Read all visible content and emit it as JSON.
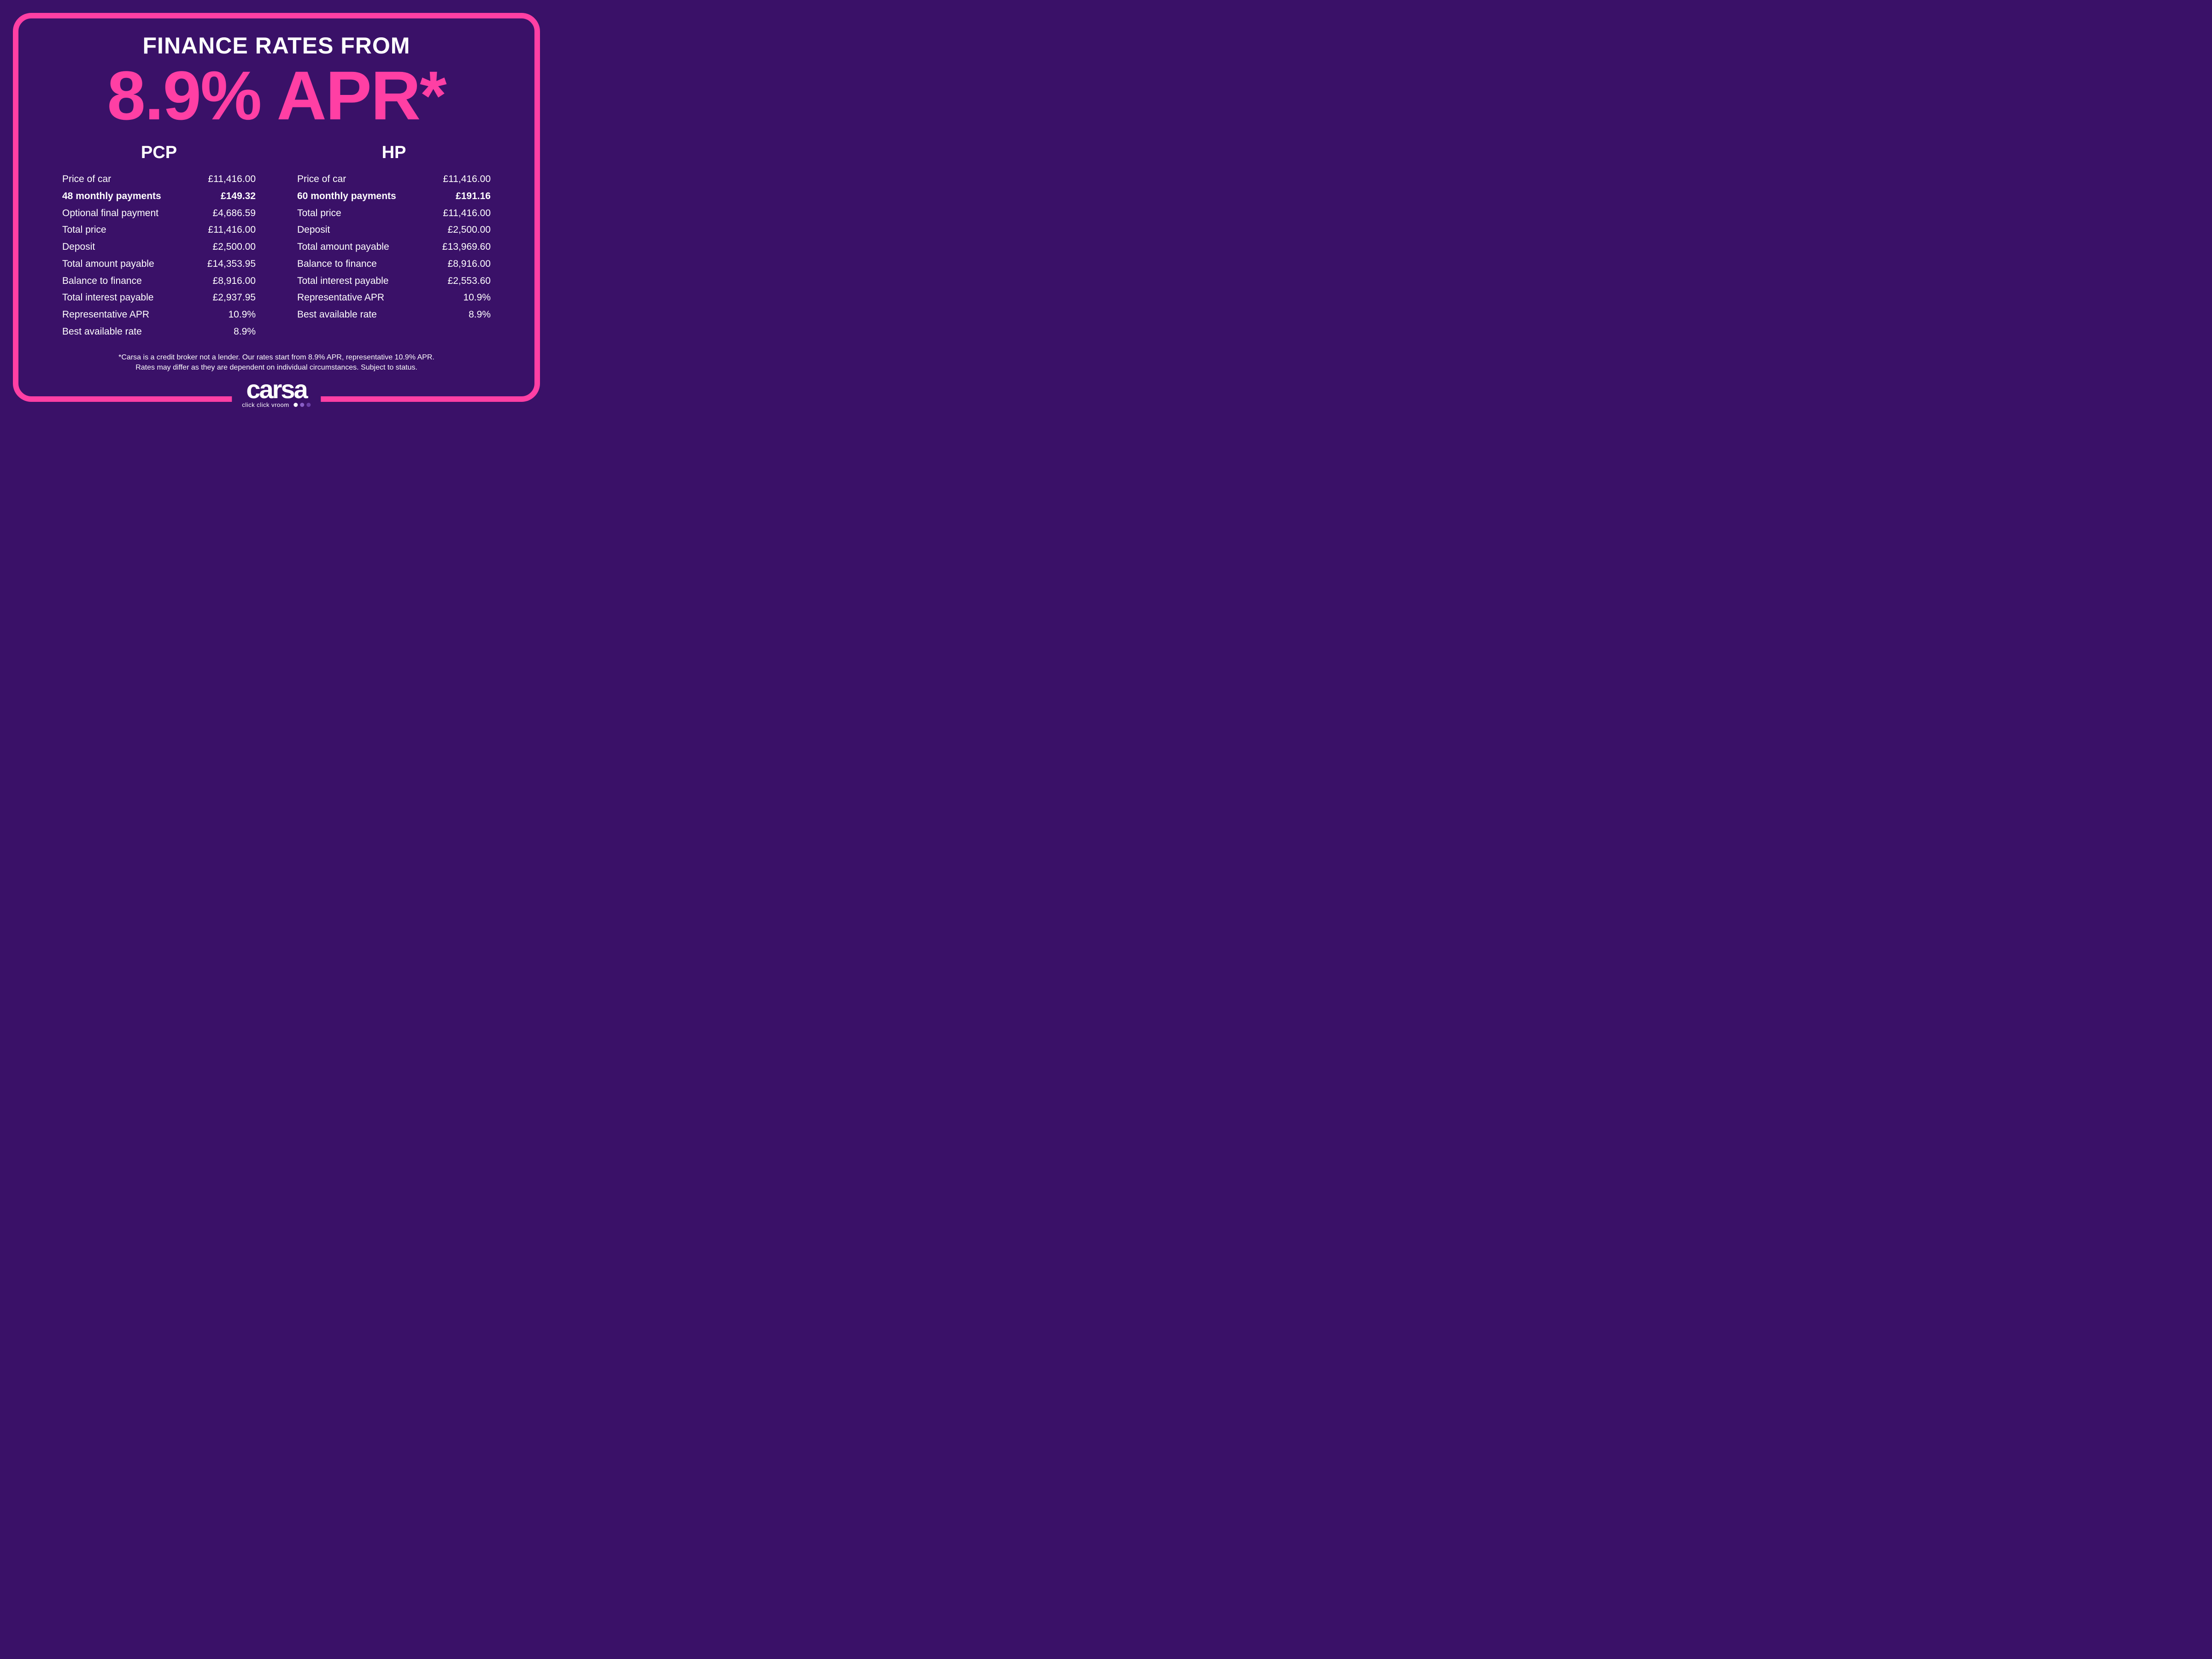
{
  "colors": {
    "background": "#3a1168",
    "accent": "#ff3fa4",
    "text": "#ffffff",
    "dot1": "#ffffff",
    "dot2": "#8a5fc7",
    "dot3": "#6b3fa8"
  },
  "header": {
    "line1": "FINANCE RATES FROM",
    "line2": "8.9% APR*"
  },
  "pcp": {
    "title": "PCP",
    "rows": [
      {
        "label": "Price of car",
        "value": "£11,416.00",
        "bold": false
      },
      {
        "label": "48 monthly payments",
        "value": "£149.32",
        "bold": true
      },
      {
        "label": "Optional final payment",
        "value": "£4,686.59",
        "bold": false
      },
      {
        "label": "Total price",
        "value": "£11,416.00",
        "bold": false
      },
      {
        "label": "Deposit",
        "value": "£2,500.00",
        "bold": false
      },
      {
        "label": "Total amount payable",
        "value": "£14,353.95",
        "bold": false
      },
      {
        "label": "Balance to finance",
        "value": "£8,916.00",
        "bold": false
      },
      {
        "label": "Total interest payable",
        "value": "£2,937.95",
        "bold": false
      },
      {
        "label": "Representative APR",
        "value": "10.9%",
        "bold": false
      },
      {
        "label": "Best available rate",
        "value": "8.9%",
        "bold": false
      }
    ]
  },
  "hp": {
    "title": "HP",
    "rows": [
      {
        "label": "Price of car",
        "value": "£11,416.00",
        "bold": false
      },
      {
        "label": "60 monthly payments",
        "value": "£191.16",
        "bold": true
      },
      {
        "label": "Total price",
        "value": "£11,416.00",
        "bold": false
      },
      {
        "label": "Deposit",
        "value": "£2,500.00",
        "bold": false
      },
      {
        "label": "Total amount payable",
        "value": "£13,969.60",
        "bold": false
      },
      {
        "label": "Balance to finance",
        "value": "£8,916.00",
        "bold": false
      },
      {
        "label": "Total interest payable",
        "value": "£2,553.60",
        "bold": false
      },
      {
        "label": "Representative APR",
        "value": "10.9%",
        "bold": false
      },
      {
        "label": "Best available rate",
        "value": "8.9%",
        "bold": false
      }
    ]
  },
  "footnote": {
    "line1": "*Carsa is a credit broker not a lender. Our rates start from 8.9% APR, representative 10.9% APR.",
    "line2": "Rates may differ as they are dependent on individual circumstances. Subject to status."
  },
  "brand": {
    "name": "carsa",
    "tagline": "click click vroom"
  }
}
